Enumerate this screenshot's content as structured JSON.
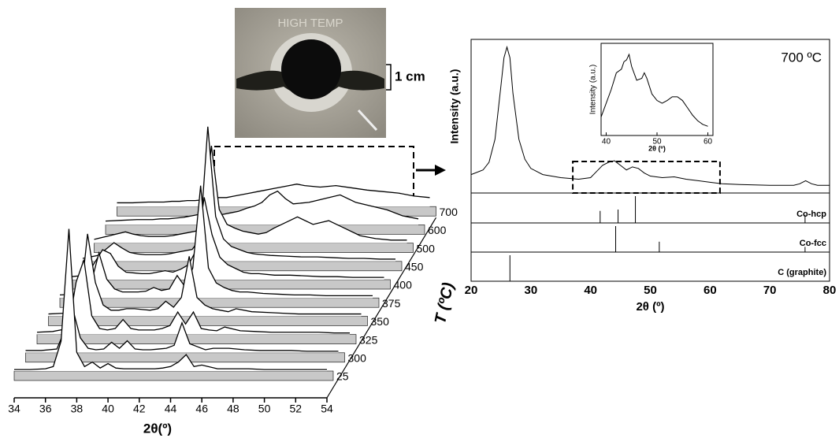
{
  "photo": {
    "label": "HIGH TEMP",
    "scale_label": "1 cm"
  },
  "chart_data": [
    {
      "type": "waterfall",
      "xlabel": "2θ(º)",
      "zlabel": "T (ºC)",
      "color": "#000000",
      "floor_color": "#c8c8c8",
      "xlim": [
        34,
        54
      ],
      "xticks": [
        34,
        36,
        38,
        40,
        42,
        44,
        46,
        48,
        50,
        52,
        54
      ],
      "ylim": [
        0,
        200
      ],
      "x": [
        34,
        35,
        36,
        36.5,
        37,
        37.5,
        38,
        38.5,
        39,
        39.5,
        40,
        40.5,
        41,
        41.5,
        42,
        42.5,
        43,
        43.5,
        44,
        44.5,
        45,
        45.5,
        46,
        47,
        48,
        49,
        50,
        51,
        52,
        53,
        54
      ],
      "series": [
        {
          "name": "25",
          "values": [
            2,
            2,
            3,
            6,
            40,
            190,
            25,
            6,
            12,
            4,
            10,
            4,
            3,
            3,
            3,
            3,
            3,
            4,
            6,
            12,
            22,
            6,
            8,
            3,
            3,
            3,
            2,
            2,
            2,
            2,
            2
          ]
        },
        {
          "name": "300",
          "values": [
            3,
            3,
            5,
            30,
            60,
            20,
            6,
            4,
            5,
            14,
            6,
            16,
            5,
            4,
            4,
            5,
            6,
            10,
            40,
            12,
            8,
            4,
            6,
            6,
            4,
            3,
            3,
            3,
            2,
            2,
            2
          ]
        },
        {
          "name": "325",
          "values": [
            3,
            4,
            8,
            70,
            100,
            25,
            8,
            6,
            8,
            20,
            8,
            6,
            6,
            6,
            8,
            12,
            30,
            14,
            30,
            8,
            6,
            5,
            10,
            5,
            4,
            3,
            3,
            3,
            3,
            2,
            2
          ]
        },
        {
          "name": "350",
          "values": [
            3,
            4,
            12,
            110,
            45,
            15,
            8,
            8,
            10,
            10,
            9,
            8,
            10,
            20,
            12,
            25,
            80,
            25,
            15,
            10,
            8,
            6,
            10,
            6,
            5,
            4,
            3,
            3,
            3,
            3,
            3
          ]
        },
        {
          "name": "375",
          "values": [
            4,
            5,
            20,
            60,
            25,
            12,
            8,
            8,
            8,
            9,
            14,
            10,
            12,
            30,
            15,
            40,
            150,
            40,
            20,
            14,
            10,
            8,
            8,
            6,
            5,
            4,
            4,
            3,
            3,
            3,
            3
          ]
        },
        {
          "name": "400",
          "values": [
            4,
            6,
            40,
            35,
            18,
            10,
            9,
            8,
            8,
            10,
            12,
            10,
            14,
            20,
            40,
            110,
            60,
            30,
            20,
            15,
            10,
            8,
            8,
            6,
            6,
            5,
            4,
            4,
            3,
            3,
            3
          ]
        },
        {
          "name": "450",
          "values": [
            4,
            8,
            25,
            18,
            12,
            10,
            9,
            9,
            9,
            10,
            12,
            14,
            16,
            30,
            180,
            60,
            30,
            20,
            16,
            12,
            10,
            9,
            8,
            7,
            6,
            6,
            5,
            4,
            4,
            3,
            3
          ]
        },
        {
          "name": "500",
          "values": [
            5,
            10,
            15,
            12,
            10,
            9,
            9,
            9,
            10,
            12,
            14,
            16,
            30,
            130,
            45,
            25,
            20,
            16,
            14,
            12,
            14,
            20,
            25,
            35,
            25,
            30,
            20,
            10,
            6,
            4,
            4
          ]
        },
        {
          "name": "600",
          "values": [
            5,
            6,
            7,
            7,
            7,
            8,
            8,
            9,
            10,
            12,
            14,
            30,
            12,
            14,
            16,
            18,
            22,
            25,
            30,
            40,
            45,
            35,
            28,
            30,
            35,
            40,
            30,
            25,
            20,
            12,
            8
          ]
        },
        {
          "name": "700",
          "values": [
            5,
            5,
            6,
            6,
            6,
            7,
            7,
            8,
            8,
            9,
            10,
            12,
            12,
            14,
            16,
            18,
            20,
            22,
            24,
            26,
            28,
            30,
            28,
            26,
            28,
            25,
            22,
            20,
            18,
            14,
            12
          ]
        }
      ]
    },
    {
      "type": "line",
      "xlabel": "2θ (º)",
      "ylabel": "Intensity (a.u.)",
      "annotation": "700 ºC",
      "color": "#000000",
      "xlim": [
        20,
        80
      ],
      "xticks": [
        20,
        30,
        40,
        50,
        60,
        70,
        80
      ],
      "ylim": [
        0,
        100
      ],
      "x": [
        20,
        22,
        23,
        24,
        25,
        25.5,
        26,
        26.5,
        27,
        28,
        29,
        30,
        32,
        35,
        38,
        40,
        41,
        42,
        43,
        44,
        45,
        46,
        47,
        48,
        49,
        50,
        52,
        54,
        56,
        58,
        60,
        62,
        65,
        70,
        74,
        75,
        76,
        77,
        78,
        80
      ],
      "values": [
        12,
        15,
        20,
        35,
        70,
        88,
        95,
        88,
        65,
        35,
        22,
        16,
        12,
        10,
        9,
        10,
        14,
        18,
        20,
        21,
        18,
        15,
        17,
        16,
        13,
        11,
        10,
        10.5,
        9,
        8,
        7,
        6,
        5.5,
        5,
        5,
        6,
        8,
        6,
        5,
        5
      ]
    },
    {
      "type": "stick",
      "title": "Co-hcp",
      "color": "#000000",
      "xlim": [
        20,
        80
      ],
      "ylim": [
        0,
        100
      ],
      "x": [
        41.6,
        44.6,
        47.5,
        75.9
      ],
      "values": [
        45,
        50,
        100,
        30
      ]
    },
    {
      "type": "stick",
      "title": "Co-fcc",
      "color": "#000000",
      "xlim": [
        20,
        80
      ],
      "ylim": [
        0,
        100
      ],
      "x": [
        44.2,
        51.5,
        75.9
      ],
      "values": [
        100,
        40,
        20
      ]
    },
    {
      "type": "stick",
      "title": "C (graphite)",
      "color": "#000000",
      "xlim": [
        20,
        80
      ],
      "ylim": [
        0,
        100
      ],
      "x": [
        26.5
      ],
      "values": [
        100
      ]
    },
    {
      "type": "line",
      "xlabel": "2θ (º)",
      "ylabel": "Intensity (a.u.)",
      "color": "#000000",
      "xlim": [
        39,
        61
      ],
      "xticks": [
        40,
        50,
        60
      ],
      "ylim": [
        0,
        100
      ],
      "x": [
        39,
        40,
        41,
        42,
        43,
        43.5,
        44,
        44.5,
        45,
        46,
        47,
        47.5,
        48,
        49,
        50,
        51,
        52,
        53,
        54,
        55,
        56,
        57,
        58,
        59,
        60
      ],
      "values": [
        20,
        35,
        50,
        68,
        72,
        80,
        82,
        88,
        75,
        60,
        62,
        68,
        62,
        45,
        38,
        35,
        38,
        42,
        42,
        38,
        30,
        22,
        16,
        12,
        10
      ]
    }
  ]
}
